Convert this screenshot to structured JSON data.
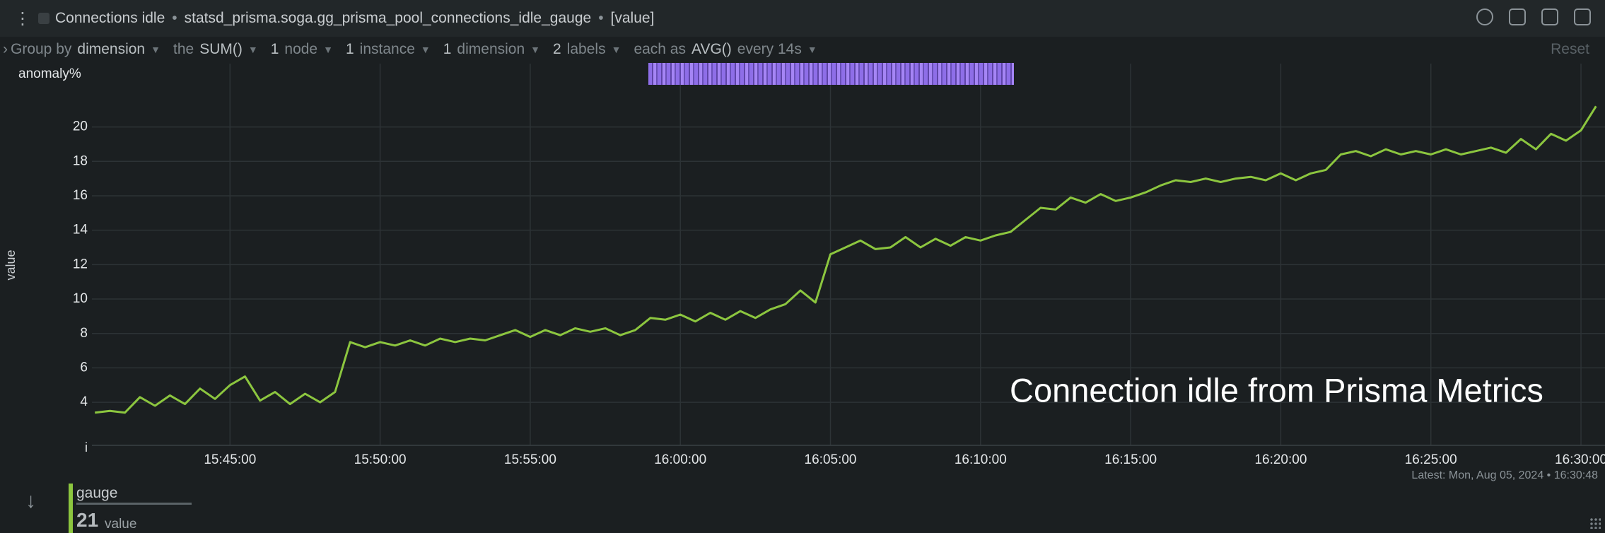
{
  "header": {
    "title": "Connections idle",
    "metric": "statsd_prisma.soga.gg_prisma_pool_connections_idle_gauge",
    "dimension": "[value]"
  },
  "toolbar": {
    "group_by_label": "Group by",
    "group_by": "dimension",
    "aggregation_label": "the",
    "aggregation": "SUM()",
    "nodes": {
      "count": "1",
      "label": "node"
    },
    "instances": {
      "count": "1",
      "label": "instance"
    },
    "dimensions": {
      "count": "1",
      "label": "dimension"
    },
    "labels": {
      "count": "2",
      "label": "labels"
    },
    "time_aggregation_label": "each as",
    "time_aggregation": "AVG()",
    "interval": "every 14s",
    "reset": "Reset"
  },
  "chart_data": {
    "type": "line",
    "y_label": "value",
    "anomaly_label": "anomaly%",
    "bottom_marker": "i",
    "annotation": "Connection idle from Prisma Metrics",
    "grid": true,
    "x": [
      "15:40:30",
      "15:41:00",
      "15:41:30",
      "15:42:00",
      "15:42:30",
      "15:43:00",
      "15:43:30",
      "15:44:00",
      "15:44:30",
      "15:45:00",
      "15:45:30",
      "15:46:00",
      "15:46:30",
      "15:47:00",
      "15:47:30",
      "15:48:00",
      "15:48:30",
      "15:49:00",
      "15:49:30",
      "15:50:00",
      "15:50:30",
      "15:51:00",
      "15:51:30",
      "15:52:00",
      "15:52:30",
      "15:53:00",
      "15:53:30",
      "15:54:00",
      "15:54:30",
      "15:55:00",
      "15:55:30",
      "15:56:00",
      "15:56:30",
      "15:57:00",
      "15:57:30",
      "15:58:00",
      "15:58:30",
      "15:59:00",
      "15:59:30",
      "16:00:00",
      "16:00:30",
      "16:01:00",
      "16:01:30",
      "16:02:00",
      "16:02:30",
      "16:03:00",
      "16:03:30",
      "16:04:00",
      "16:04:30",
      "16:05:00",
      "16:05:30",
      "16:06:00",
      "16:06:30",
      "16:07:00",
      "16:07:30",
      "16:08:00",
      "16:08:30",
      "16:09:00",
      "16:09:30",
      "16:10:00",
      "16:10:30",
      "16:11:00",
      "16:11:30",
      "16:12:00",
      "16:12:30",
      "16:13:00",
      "16:13:30",
      "16:14:00",
      "16:14:30",
      "16:15:00",
      "16:15:30",
      "16:16:00",
      "16:16:30",
      "16:17:00",
      "16:17:30",
      "16:18:00",
      "16:18:30",
      "16:19:00",
      "16:19:30",
      "16:20:00",
      "16:20:30",
      "16:21:00",
      "16:21:30",
      "16:22:00",
      "16:22:30",
      "16:23:00",
      "16:23:30",
      "16:24:00",
      "16:24:30",
      "16:25:00",
      "16:25:30",
      "16:26:00",
      "16:26:30",
      "16:27:00",
      "16:27:30",
      "16:28:00",
      "16:28:30",
      "16:29:00",
      "16:29:30",
      "16:30:00",
      "16:30:30"
    ],
    "series": [
      {
        "name": "gauge",
        "color": "#8cc63f",
        "values": [
          3.4,
          3.5,
          3.4,
          4.3,
          3.8,
          4.4,
          3.9,
          4.8,
          4.2,
          5.0,
          5.5,
          4.1,
          4.6,
          3.9,
          4.5,
          4.0,
          4.6,
          7.5,
          7.2,
          7.5,
          7.3,
          7.6,
          7.3,
          7.7,
          7.5,
          7.7,
          7.6,
          7.9,
          8.2,
          7.8,
          8.2,
          7.9,
          8.3,
          8.1,
          8.3,
          7.9,
          8.2,
          8.9,
          8.8,
          9.1,
          8.7,
          9.2,
          8.8,
          9.3,
          8.9,
          9.4,
          9.7,
          10.5,
          9.8,
          12.6,
          13.0,
          13.4,
          12.9,
          13.0,
          13.6,
          13.0,
          13.5,
          13.1,
          13.6,
          13.4,
          13.7,
          13.9,
          14.6,
          15.3,
          15.2,
          15.9,
          15.6,
          16.1,
          15.7,
          15.9,
          16.2,
          16.6,
          16.9,
          16.8,
          17.0,
          16.8,
          17.0,
          17.1,
          16.9,
          17.3,
          16.9,
          17.3,
          17.5,
          18.4,
          18.6,
          18.3,
          18.7,
          18.4,
          18.6,
          18.4,
          18.7,
          18.4,
          18.6,
          18.8,
          18.5,
          19.3,
          18.7,
          19.6,
          19.2,
          19.8,
          21.2
        ]
      }
    ],
    "xlim": [
      "15:40:24",
      "16:30:48"
    ],
    "xticks": [
      "15:45:00",
      "15:50:00",
      "15:55:00",
      "16:00:00",
      "16:05:00",
      "16:10:00",
      "16:15:00",
      "16:20:00",
      "16:25:00",
      "16:30:00"
    ],
    "ylim": [
      1.5,
      22.2
    ],
    "yticks": [
      4,
      6,
      8,
      10,
      12,
      14,
      16,
      18,
      20
    ]
  },
  "legend": {
    "value": 21,
    "unit": "value"
  },
  "latest": "Latest: Mon, Aug 05, 2024 • 16:30:48"
}
